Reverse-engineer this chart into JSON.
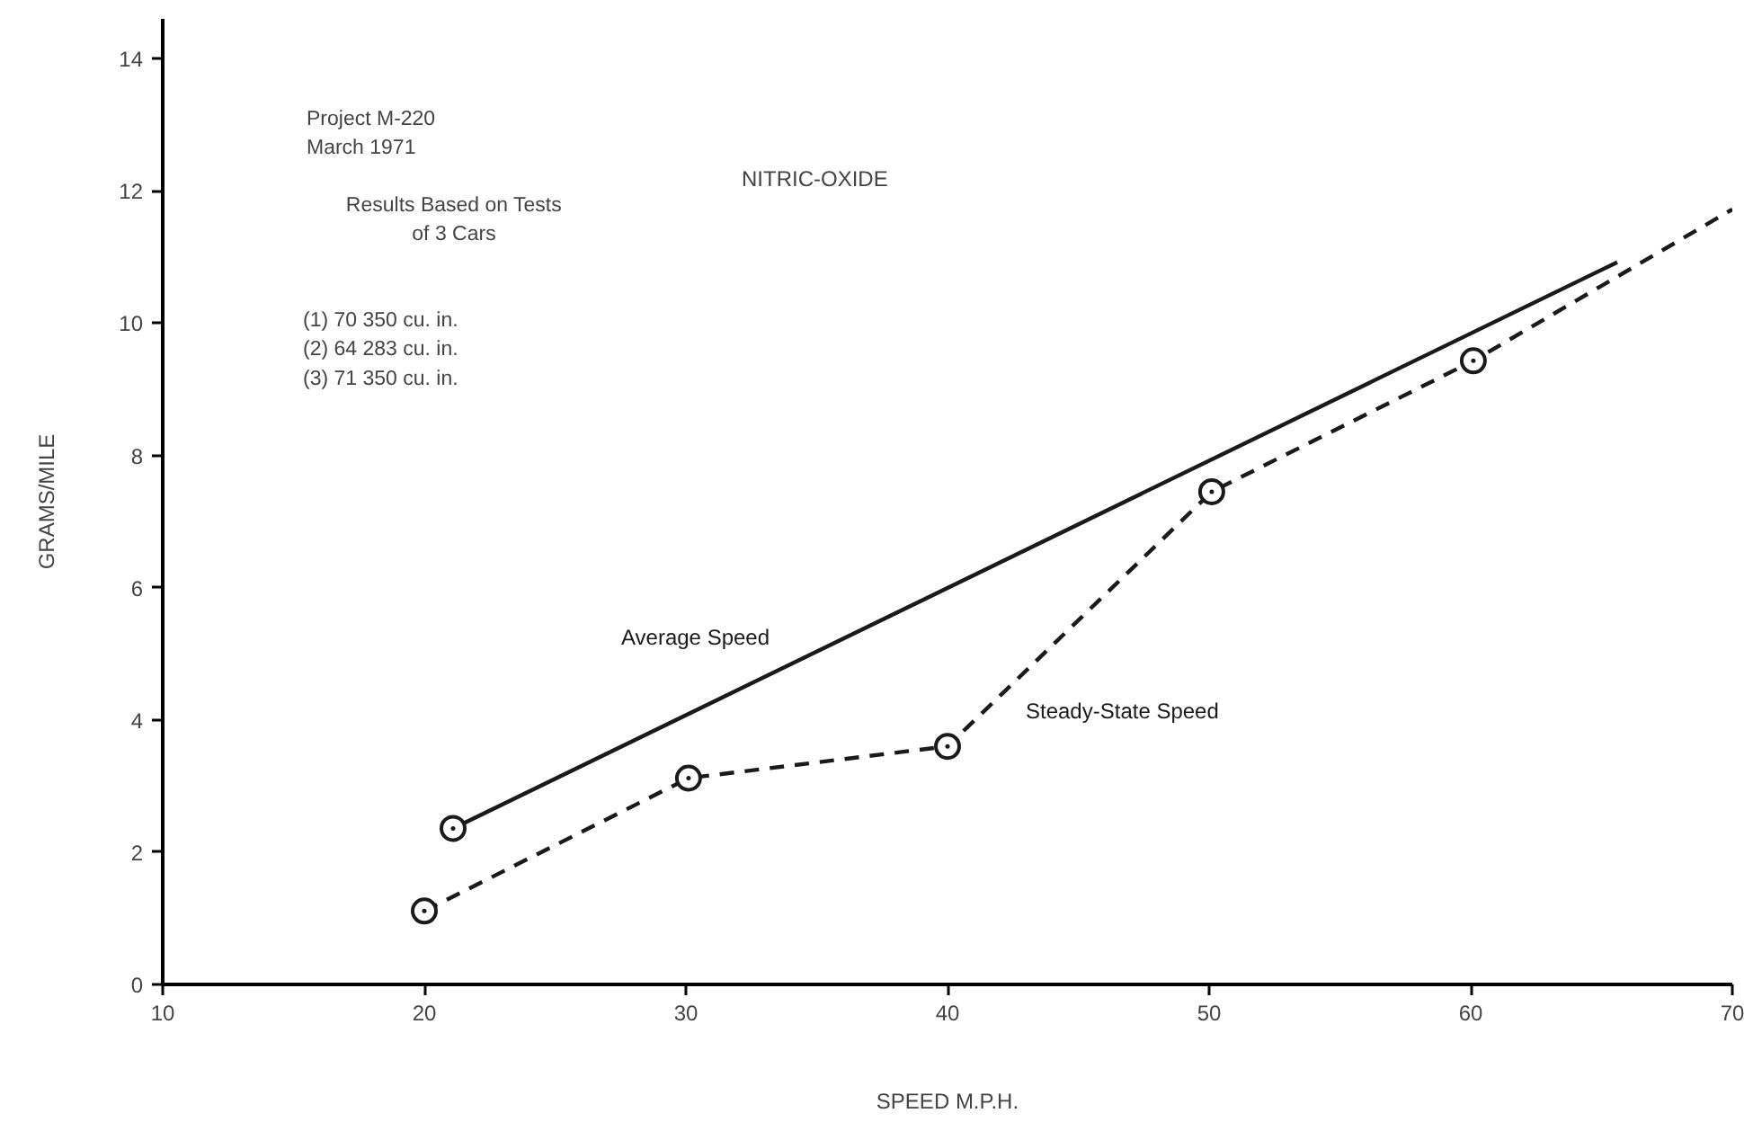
{
  "chart_data": {
    "type": "line",
    "title": "NITRIC-OXIDE",
    "xlabel": "SPEED M.P.H.",
    "ylabel": "GRAMS/MILE",
    "annotations": [
      "Project M-220\nMarch 1971",
      "Results Based on Tests\nof 3 Cars",
      "(1) 70 350 cu. in.\n(2) 64 283 cu. in.\n(3) 71 350 cu. in."
    ],
    "xlim": [
      10,
      70
    ],
    "ylim": [
      0,
      14.6
    ],
    "xticks": [
      10,
      20,
      30,
      40,
      50,
      60,
      70
    ],
    "yticks": [
      0,
      2,
      4,
      6,
      8,
      10,
      12,
      14
    ],
    "grid": false,
    "legend": false,
    "series": [
      {
        "name": "Average Speed",
        "line_style": "solid",
        "color": "#1a1a1a",
        "x": [
          21.1,
          65.6
        ],
        "values": [
          2.36,
          10.92
        ]
      },
      {
        "name": "Steady-State Speed",
        "line_style": "dashed",
        "color": "#1a1a1a",
        "x": [
          20,
          30.1,
          40,
          50.1,
          60.1,
          70
        ],
        "values": [
          1.11,
          3.12,
          3.6,
          7.45,
          9.43,
          11.72
        ]
      },
      {
        "type": "scatter",
        "marker": "circle",
        "color": "#1a1a1a",
        "x": [
          21.1,
          20,
          30.1,
          40,
          50.1,
          60.1
        ],
        "values": [
          2.36,
          1.11,
          3.12,
          3.6,
          7.45,
          9.43
        ]
      }
    ]
  }
}
